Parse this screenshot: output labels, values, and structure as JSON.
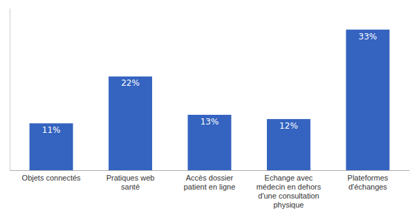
{
  "chart_data": {
    "type": "bar",
    "categories": [
      "Objets connectés",
      "Pratiques web\nsanté",
      "Accès dossier\npatient en ligne",
      "Echange avec\nmédecin en dehors\nd'une consultation\nphysique",
      "Plateformes\nd'échanges"
    ],
    "values": [
      11,
      22,
      13,
      12,
      33
    ],
    "value_labels": [
      "11%",
      "22%",
      "13%",
      "12%",
      "33%"
    ],
    "data_labels": true,
    "color": "#3463C0",
    "ylim": [
      0,
      38
    ],
    "grid": false,
    "tick_labels": "x"
  }
}
